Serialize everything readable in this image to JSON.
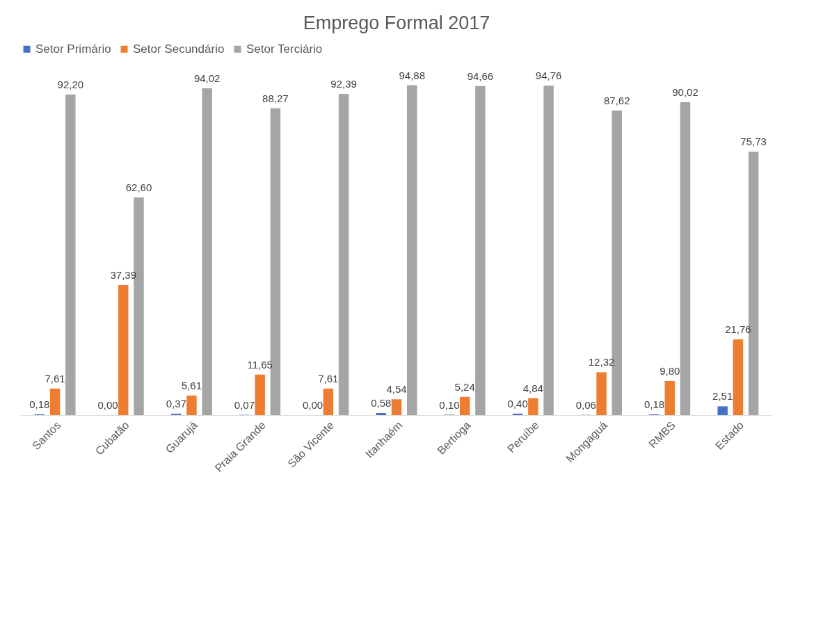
{
  "chart_data": {
    "type": "bar",
    "title": "Emprego Formal 2017",
    "legend": "top",
    "grid": false,
    "categories": [
      "Santos",
      "Cubatão",
      "Guarujá",
      "Praia Grande",
      "São Vicente",
      "Itanhaém",
      "Bertioga",
      "Peruíbe",
      "Mongaguá",
      "RMBS",
      "Estado"
    ],
    "series": [
      {
        "name": "Setor Primário",
        "color": "#4472c4",
        "values": [
          0.18,
          0.0,
          0.37,
          0.07,
          0.0,
          0.58,
          0.1,
          0.4,
          0.06,
          0.18,
          2.51
        ],
        "value_labels": [
          "0,18",
          "0,00",
          "0,37",
          "0,07",
          "0,00",
          "0,58",
          "0,10",
          "0,40",
          "0,06",
          "0,18",
          "2,51"
        ]
      },
      {
        "name": "Setor Secundário",
        "color": "#ed7d31",
        "values": [
          7.61,
          37.39,
          5.61,
          11.65,
          7.61,
          4.54,
          5.24,
          4.84,
          12.32,
          9.8,
          21.76
        ],
        "value_labels": [
          "7,61",
          "37,39",
          "5,61",
          "11,65",
          "7,61",
          "4,54",
          "5,24",
          "4,84",
          "12,32",
          "9,80",
          "21,76"
        ]
      },
      {
        "name": "Setor Terciário",
        "color": "#a5a5a5",
        "values": [
          92.2,
          62.6,
          94.02,
          88.27,
          92.39,
          94.88,
          94.66,
          94.76,
          87.62,
          90.02,
          75.73
        ],
        "value_labels": [
          "92,20",
          "62,60",
          "94,02",
          "88,27",
          "92,39",
          "94,88",
          "94,66",
          "94,76",
          "87,62",
          "90,02",
          "75,73"
        ]
      }
    ]
  }
}
